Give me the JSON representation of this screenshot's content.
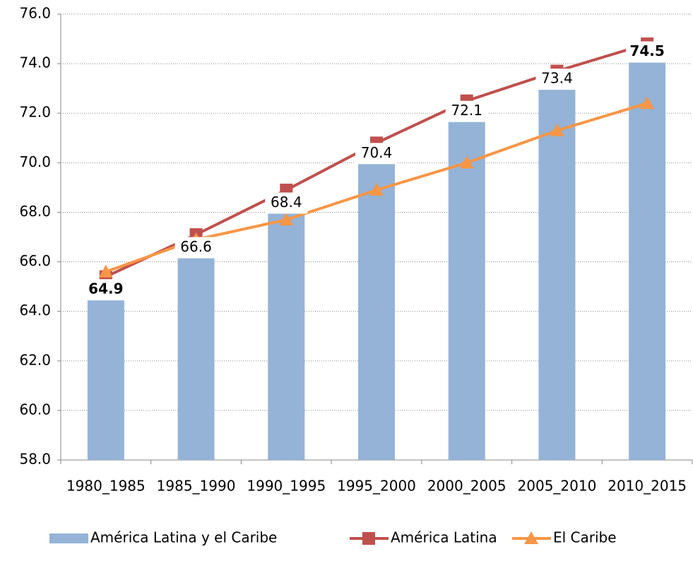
{
  "chart_data": {
    "type": "bar-line",
    "categories": [
      "1980_1985",
      "1985_1990",
      "1990_1995",
      "1995_2000",
      "2000_2005",
      "2005_2010",
      "2010_2015"
    ],
    "series": [
      {
        "name": "América Latina y el Caribe",
        "type": "bar",
        "color": "#95b3d7",
        "values": [
          64.9,
          66.6,
          68.4,
          70.4,
          72.1,
          73.4,
          74.5
        ],
        "label_bold": [
          true,
          false,
          false,
          false,
          false,
          false,
          true
        ]
      },
      {
        "name": "América Latina",
        "type": "line",
        "marker": "square",
        "color": "#c0504d",
        "values": [
          65.4,
          67.1,
          68.9,
          70.8,
          72.5,
          73.7,
          74.8
        ]
      },
      {
        "name": "El Caribe",
        "type": "line",
        "marker": "triangle",
        "color": "#f79646",
        "values": [
          65.6,
          66.9,
          67.7,
          68.9,
          70.0,
          71.3,
          72.4
        ]
      }
    ],
    "ylim": [
      58,
      76
    ],
    "yticks": [
      {
        "value": 58,
        "label": "58.0"
      },
      {
        "value": 60,
        "label": "60.0"
      },
      {
        "value": 62,
        "label": "62.0"
      },
      {
        "value": 64,
        "label": "64.0"
      },
      {
        "value": 66,
        "label": "66.0"
      },
      {
        "value": 68,
        "label": "68.0"
      },
      {
        "value": 70,
        "label": "70.0"
      },
      {
        "value": 72,
        "label": "72.0"
      },
      {
        "value": 74,
        "label": "74.0"
      },
      {
        "value": 76,
        "label": "76.0"
      }
    ],
    "grid": true,
    "legend": "bottom"
  }
}
